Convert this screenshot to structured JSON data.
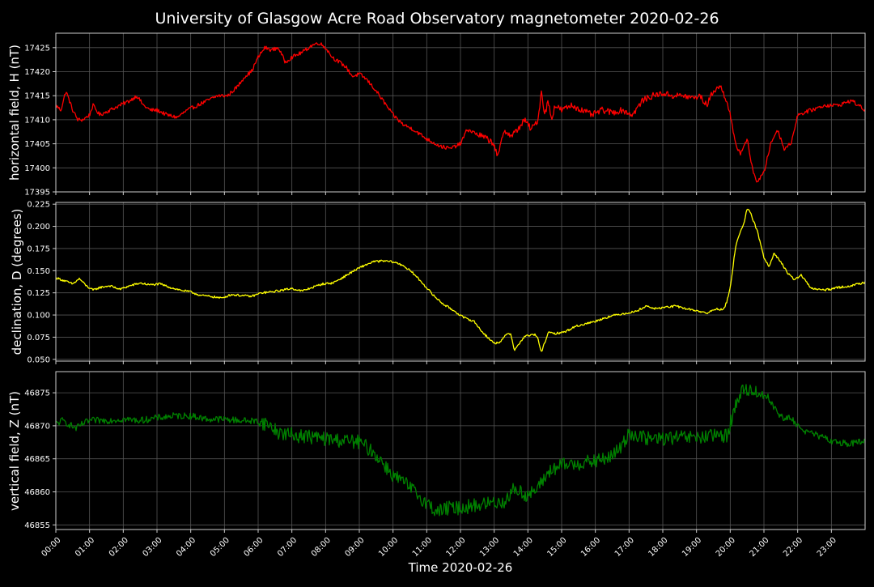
{
  "figure_title": "University of Glasgow Acre Road Observatory magnetometer 2020-02-26",
  "colors": {
    "background": "#000000",
    "grid": "#555555",
    "axes": "#cccccc",
    "text": "#ffffff",
    "h_series": "#ff0000",
    "d_series": "#ffff00",
    "z_series": "#008000"
  },
  "chart_data": [
    {
      "type": "line",
      "title": "",
      "xlabel": "",
      "ylabel": "horizontal field, H (nT)",
      "ylim": [
        17395,
        17428
      ],
      "yticks": [
        17395,
        17400,
        17405,
        17410,
        17415,
        17420,
        17425
      ],
      "ytick_labels": [
        "17395",
        "17400",
        "17405",
        "17410",
        "17415",
        "17420",
        "17425"
      ],
      "grid": true,
      "color": "#ff0000",
      "noise": 0.4,
      "series": [
        {
          "x_hours": [
            0,
            0.15,
            0.3,
            0.5,
            0.65,
            0.8,
            1.0,
            1.1,
            1.3,
            1.6,
            1.9,
            2.2,
            2.4,
            2.6,
            2.8,
            3.0,
            3.3,
            3.6,
            3.9,
            4.2,
            4.5,
            4.8,
            5.1,
            5.4,
            5.6,
            5.8,
            6.0,
            6.2,
            6.4,
            6.6,
            6.8,
            7.0,
            7.3,
            7.6,
            7.8,
            8.0,
            8.2,
            8.4,
            8.6,
            8.8,
            9.0,
            9.2,
            9.5,
            9.8,
            10.0,
            10.3,
            10.6,
            11.0,
            11.4,
            11.7,
            12.0,
            12.2,
            12.5,
            12.8,
            13.0,
            13.1,
            13.3,
            13.5,
            13.7,
            13.9,
            14.1,
            14.3,
            14.4,
            14.5,
            14.6,
            14.7,
            14.8,
            15.0,
            15.3,
            15.6,
            15.9,
            16.2,
            16.5,
            16.8,
            17.1,
            17.4,
            17.7,
            18.0,
            18.3,
            18.6,
            18.9,
            19.1,
            19.3,
            19.5,
            19.7,
            19.9,
            20.0,
            20.15,
            20.3,
            20.5,
            20.65,
            20.8,
            21.0,
            21.2,
            21.4,
            21.6,
            21.8,
            22.0,
            22.4,
            22.8,
            23.2,
            23.6,
            24.0
          ],
          "values": [
            17413,
            17412,
            17416,
            17412,
            17410,
            17410,
            17411,
            17413,
            17411,
            17412,
            17413,
            17414,
            17415,
            17413,
            17412,
            17412,
            17411,
            17410.5,
            17412,
            17413,
            17414,
            17415,
            17415,
            17417,
            17419,
            17420,
            17423,
            17425,
            17424.5,
            17425,
            17422,
            17423,
            17424,
            17425.5,
            17426,
            17425,
            17423,
            17422,
            17421,
            17419,
            17419.5,
            17418.5,
            17416,
            17413,
            17411,
            17409,
            17408,
            17406,
            17404.5,
            17404,
            17405,
            17408,
            17407,
            17406,
            17405,
            17402,
            17408,
            17406.5,
            17408,
            17410,
            17408,
            17410,
            17416,
            17411,
            17414,
            17410,
            17413,
            17412,
            17413,
            17412,
            17411,
            17412,
            17411.5,
            17412,
            17411,
            17414,
            17415,
            17415.5,
            17415,
            17415,
            17414.5,
            17415,
            17413,
            17416,
            17417,
            17414,
            17411,
            17405,
            17403,
            17406,
            17400,
            17397,
            17399,
            17405,
            17408,
            17404,
            17405,
            17411,
            17412,
            17413,
            17413,
            17414,
            17412
          ]
        }
      ]
    },
    {
      "type": "line",
      "title": "",
      "xlabel": "",
      "ylabel": "declination, D (degrees)",
      "ylim": [
        0.048,
        0.227
      ],
      "yticks": [
        0.05,
        0.075,
        0.1,
        0.125,
        0.15,
        0.175,
        0.2,
        0.225
      ],
      "ytick_labels": [
        "0.050",
        "0.075",
        "0.100",
        "0.125",
        "0.150",
        "0.175",
        "0.200",
        "0.225"
      ],
      "grid": true,
      "color": "#ffff00",
      "noise": 0.0012,
      "series": [
        {
          "x_hours": [
            0,
            0.3,
            0.5,
            0.7,
            0.9,
            1.1,
            1.3,
            1.6,
            1.9,
            2.2,
            2.5,
            2.8,
            3.1,
            3.4,
            3.7,
            4.0,
            4.3,
            4.6,
            4.9,
            5.2,
            5.5,
            5.8,
            6.1,
            6.4,
            6.7,
            7.0,
            7.3,
            7.6,
            7.9,
            8.2,
            8.5,
            8.8,
            9.1,
            9.4,
            9.7,
            10.0,
            10.3,
            10.6,
            10.9,
            11.2,
            11.5,
            11.8,
            12.1,
            12.4,
            12.6,
            12.8,
            13.0,
            13.2,
            13.4,
            13.5,
            13.6,
            13.9,
            14.2,
            14.3,
            14.4,
            14.6,
            14.8,
            15.1,
            15.4,
            15.7,
            16.0,
            16.3,
            16.6,
            16.9,
            17.2,
            17.5,
            17.8,
            18.1,
            18.4,
            18.7,
            19.0,
            19.3,
            19.6,
            19.8,
            19.9,
            20.0,
            20.15,
            20.3,
            20.42,
            20.5,
            20.6,
            20.8,
            21.0,
            21.15,
            21.3,
            21.5,
            21.7,
            21.9,
            22.1,
            22.4,
            22.8,
            23.2,
            23.6,
            24.0
          ],
          "values": [
            0.142,
            0.138,
            0.135,
            0.141,
            0.133,
            0.128,
            0.131,
            0.133,
            0.129,
            0.133,
            0.136,
            0.134,
            0.135,
            0.131,
            0.128,
            0.126,
            0.122,
            0.121,
            0.119,
            0.123,
            0.122,
            0.121,
            0.125,
            0.126,
            0.128,
            0.13,
            0.127,
            0.131,
            0.135,
            0.136,
            0.142,
            0.149,
            0.155,
            0.16,
            0.161,
            0.16,
            0.156,
            0.147,
            0.135,
            0.122,
            0.112,
            0.105,
            0.097,
            0.093,
            0.083,
            0.075,
            0.068,
            0.07,
            0.08,
            0.078,
            0.06,
            0.076,
            0.078,
            0.073,
            0.058,
            0.08,
            0.079,
            0.081,
            0.087,
            0.09,
            0.093,
            0.097,
            0.1,
            0.102,
            0.104,
            0.11,
            0.107,
            0.109,
            0.11,
            0.107,
            0.105,
            0.102,
            0.107,
            0.106,
            0.115,
            0.13,
            0.175,
            0.195,
            0.205,
            0.22,
            0.215,
            0.195,
            0.165,
            0.155,
            0.17,
            0.16,
            0.147,
            0.14,
            0.145,
            0.13,
            0.128,
            0.131,
            0.133,
            0.137
          ]
        }
      ]
    },
    {
      "type": "line",
      "title": "",
      "xlabel": "Time 2020-02-26",
      "ylabel": "vertical field, Z (nT)",
      "ylim": [
        46854.3,
        46878.2
      ],
      "yticks": [
        46855,
        46860,
        46865,
        46870,
        46875
      ],
      "ytick_labels": [
        "46855",
        "46860",
        "46865",
        "46870",
        "46875"
      ],
      "xticks_hours": [
        0,
        1,
        2,
        3,
        4,
        5,
        6,
        7,
        8,
        9,
        10,
        11,
        12,
        13,
        14,
        15,
        16,
        17,
        18,
        19,
        20,
        21,
        22,
        23
      ],
      "xtick_labels": [
        "00:00",
        "01:00",
        "02:00",
        "03:00",
        "04:00",
        "05:00",
        "06:00",
        "07:00",
        "08:00",
        "09:00",
        "10:00",
        "11:00",
        "12:00",
        "13:00",
        "14:00",
        "15:00",
        "16:00",
        "17:00",
        "18:00",
        "19:00",
        "20:00",
        "21:00",
        "22:00",
        "23:00"
      ],
      "grid": true,
      "color": "#008000",
      "noise": 0.5,
      "series": [
        {
          "x_hours": [
            0,
            0.2,
            0.4,
            0.6,
            0.8,
            1.0,
            1.5,
            2.0,
            2.5,
            3.0,
            3.5,
            4.0,
            4.5,
            5.0,
            5.5,
            6.0,
            6.3,
            6.6,
            7.0,
            7.5,
            8.0,
            8.5,
            9.0,
            9.3,
            9.6,
            10.0,
            10.3,
            10.6,
            11.0,
            11.3,
            11.6,
            12.0,
            12.5,
            13.0,
            13.3,
            13.6,
            14.0,
            14.3,
            14.6,
            15.0,
            15.5,
            16.0,
            16.5,
            16.8,
            17.0,
            17.3,
            17.6,
            18.0,
            18.5,
            19.0,
            19.5,
            19.9,
            20.1,
            20.3,
            20.5,
            20.8,
            21.1,
            21.4,
            21.6,
            21.8,
            22.0,
            22.3,
            22.6,
            23.0,
            23.5,
            24.0
          ],
          "values": [
            46870.3,
            46870.8,
            46870.2,
            46869.6,
            46870.3,
            46870.8,
            46870.8,
            46871,
            46870.8,
            46871.2,
            46871.5,
            46871.5,
            46871,
            46871,
            46870.8,
            46870.7,
            46870.2,
            46869,
            46868.6,
            46868.4,
            46868,
            46867.8,
            46867.5,
            46866.5,
            46865,
            46862.5,
            46861.5,
            46860.2,
            46858.3,
            46857,
            46857.5,
            46857.6,
            46858,
            46858.4,
            46858.5,
            46860.5,
            46859.4,
            46860.5,
            46863,
            46864,
            46864.3,
            46864.6,
            46865.4,
            46867,
            46869,
            46868.4,
            46868,
            46868.1,
            46868.2,
            46868.2,
            46868.4,
            46868.6,
            46872,
            46875,
            46875.6,
            46875,
            46874.5,
            46872,
            46871,
            46871.2,
            46870,
            46869,
            46868.5,
            46867.7,
            46867.3,
            46867.6
          ]
        }
      ]
    }
  ]
}
